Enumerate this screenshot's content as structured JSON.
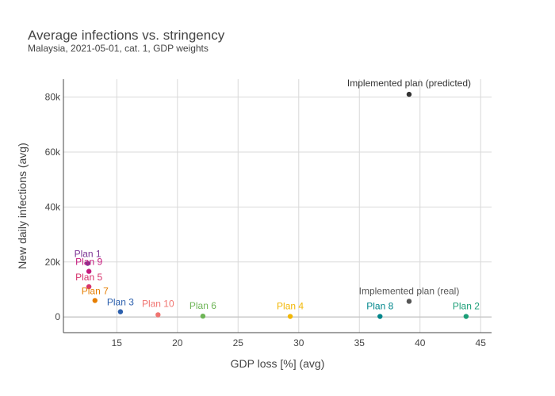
{
  "chart_data": {
    "type": "scatter",
    "title": "Average infections vs. stringency",
    "subtitle": "Malaysia, 2021-05-01, cat. 1, GDP weights",
    "xlabel": "GDP loss [%] (avg)",
    "ylabel": "New daily infections (avg)",
    "xlim": [
      10.6,
      45.9
    ],
    "ylim": [
      -5700,
      86500
    ],
    "xticks": [
      15,
      20,
      25,
      30,
      35,
      40,
      45
    ],
    "xtick_labels": [
      "15",
      "20",
      "25",
      "30",
      "35",
      "40",
      "45"
    ],
    "yticks": [
      0,
      20000,
      40000,
      60000,
      80000
    ],
    "ytick_labels": [
      "0",
      "20k",
      "40k",
      "60k",
      "80k"
    ],
    "grid": true,
    "legend": "none",
    "points": [
      {
        "label": "Implemented plan (predicted)",
        "x": 39.1,
        "y": 81000,
        "color": "#333333"
      },
      {
        "label": "Plan 1",
        "x": 12.6,
        "y": 19500,
        "color": "#7b3294"
      },
      {
        "label": "Plan 9",
        "x": 12.7,
        "y": 16600,
        "color": "#c51b7d"
      },
      {
        "label": "Plan 5",
        "x": 12.7,
        "y": 11000,
        "color": "#d6336c"
      },
      {
        "label": "Plan 7",
        "x": 13.2,
        "y": 6000,
        "color": "#e67e00"
      },
      {
        "label": "Plan 3",
        "x": 15.3,
        "y": 1900,
        "color": "#2b5fad"
      },
      {
        "label": "Plan 10",
        "x": 18.4,
        "y": 800,
        "color": "#f07470"
      },
      {
        "label": "Plan 6",
        "x": 22.1,
        "y": 300,
        "color": "#6eb557"
      },
      {
        "label": "Plan 4",
        "x": 29.3,
        "y": 200,
        "color": "#f2b705"
      },
      {
        "label": "Implemented plan (real)",
        "x": 39.1,
        "y": 5700,
        "color": "#555555"
      },
      {
        "label": "Plan 8",
        "x": 36.7,
        "y": 200,
        "color": "#00868b"
      },
      {
        "label": "Plan 2",
        "x": 43.8,
        "y": 200,
        "color": "#1a9e77"
      }
    ]
  }
}
